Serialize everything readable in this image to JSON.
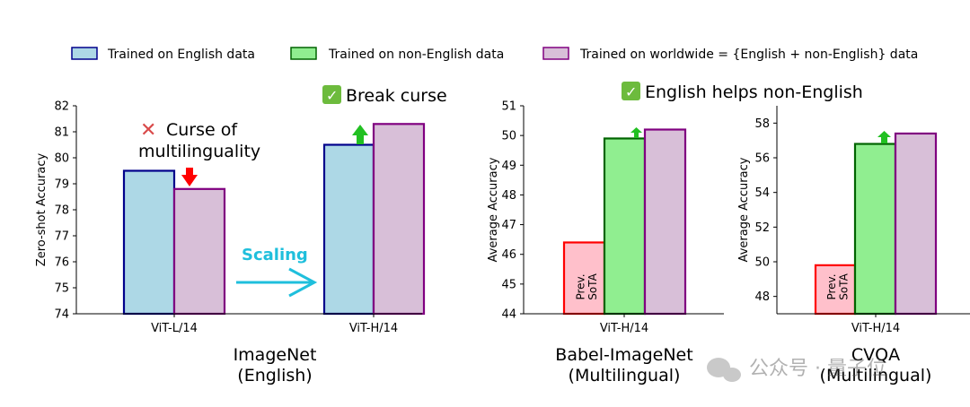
{
  "legend": [
    {
      "label": "Trained on English data",
      "fill": "#add8e6",
      "stroke": "#00008b"
    },
    {
      "label": "Trained on non-English data",
      "fill": "#90ee90",
      "stroke": "#006400"
    },
    {
      "label": "Trained on worldwide = {English + non-English} data",
      "fill": "#d8bfd8",
      "stroke": "#800080"
    }
  ],
  "colors": {
    "english": {
      "fill": "#add8e6",
      "stroke": "#00008b"
    },
    "non_english": {
      "fill": "#90ee90",
      "stroke": "#006400"
    },
    "worldwide": {
      "fill": "#d8bfd8",
      "stroke": "#800080"
    },
    "prev_sota": {
      "fill": "#ffc0cb",
      "stroke": "#ff0000"
    },
    "arrow_down": "#ff0000",
    "arrow_up": "#22c022",
    "scaling": "#1fbfdc",
    "check": "#6dbb3d",
    "cross": "#d94a4a"
  },
  "annotations": {
    "curse_line1": "Curse of",
    "curse_line2": "multilinguality",
    "break_curse": "Break curse",
    "english_helps": "English helps non-English",
    "scaling": "Scaling",
    "check_mark": "✓",
    "cross_mark": "✕",
    "prev_sota_line1": "Prev.",
    "prev_sota_line2": "SoTA",
    "watermark": "公众号 · 量子位"
  },
  "chart_data": [
    {
      "type": "bar",
      "title": "ImageNet\n(English)",
      "xlabel_line1": "ImageNet",
      "xlabel_line2": "(English)",
      "ylabel": "Zero-shot Accuracy",
      "ylim": [
        74,
        82
      ],
      "yticks": [
        74,
        75,
        76,
        77,
        78,
        79,
        80,
        81,
        82
      ],
      "categories": [
        "ViT-L/14",
        "ViT-H/14"
      ],
      "series": [
        {
          "name": "Trained on English data",
          "values": [
            79.5,
            80.5
          ]
        },
        {
          "name": "Trained on worldwide = {English + non-English} data",
          "values": [
            78.8,
            81.3
          ]
        }
      ]
    },
    {
      "type": "bar",
      "title": "Babel-ImageNet\n(Multilingual)",
      "xlabel_line1": "Babel-ImageNet",
      "xlabel_line2": "(Multilingual)",
      "ylabel": "Average Accuracy",
      "ylim": [
        44,
        51
      ],
      "yticks": [
        44,
        45,
        46,
        47,
        48,
        49,
        50,
        51
      ],
      "categories": [
        "ViT-H/14"
      ],
      "series": [
        {
          "name": "Prev. SoTA",
          "values": [
            46.4
          ]
        },
        {
          "name": "Trained on non-English data",
          "values": [
            49.9
          ]
        },
        {
          "name": "Trained on worldwide = {English + non-English} data",
          "values": [
            50.2
          ]
        }
      ]
    },
    {
      "type": "bar",
      "title": "CVQA\n(Multilingual)",
      "xlabel_line1": "CVQA",
      "xlabel_line2": "(Multilingual)",
      "ylabel": "Average Accuracy",
      "ylim": [
        47,
        59
      ],
      "yticks": [
        48,
        50,
        52,
        54,
        56,
        58
      ],
      "categories": [
        "ViT-H/14"
      ],
      "series": [
        {
          "name": "Prev. SoTA",
          "values": [
            49.8
          ]
        },
        {
          "name": "Trained on non-English data",
          "values": [
            56.8
          ]
        },
        {
          "name": "Trained on worldwide = {English + non-English} data",
          "values": [
            57.4
          ]
        }
      ]
    }
  ]
}
